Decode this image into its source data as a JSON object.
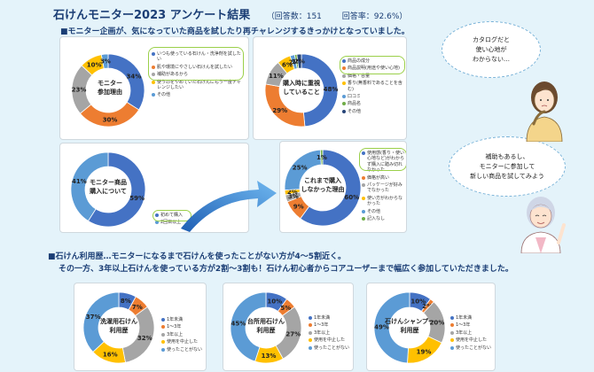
{
  "header": {
    "title": "石けんモニター2023 アンケート結果",
    "responses": "（回答数：151",
    "response_rate": "回答率：92.6%）"
  },
  "section1": "■モニター企画が、気になっていた商品を試したり再チャレンジするきっかけとなっていました。",
  "section2": {
    "line1": "■石けん利用歴…モニターになるまで石けんを使ったことがない方が4～5割近く。",
    "line2": "その一方、3年以上石けんを使っている方が2割～3割も！石けん初心者からコアユーザーまで幅広く参加していただきました。"
  },
  "bubble_top": {
    "line1": "カタログだと",
    "line2": "使い心地が",
    "line3": "わからない…"
  },
  "bubble_bottom": {
    "line1": "補助もあるし、",
    "line2": "モニターに参加して",
    "line3": "新しい商品を試してみよう"
  },
  "colors": {
    "blue": "#4472c4",
    "orange": "#ed7d31",
    "gray": "#a5a5a5",
    "yellow": "#ffc000",
    "lightblue": "#5b9bd5",
    "green": "#70ad47",
    "highlight": "#9bd04a",
    "title": "#1b3e75"
  },
  "chart_data": [
    {
      "type": "pie",
      "title": "モニター参加理由",
      "labels": {
        "slice0": "34%",
        "slice1": "30%",
        "slice2": "23%",
        "slice3": "10%",
        "slice4": "3%"
      },
      "values": [
        34,
        30,
        23,
        10,
        3
      ],
      "legend": [
        "いつも使っている石けん・洗浄剤を試したい",
        "肌や環境にやさしい石けんを試したい",
        "補助があるから",
        "使うのをやめていた石けんにもう一度チャレンジしたい",
        "その他"
      ]
    },
    {
      "type": "pie",
      "title": "購入時に重視していること",
      "labels": {
        "slice0": "48%",
        "slice1": "29%",
        "slice2": "11%",
        "slice3": "6%",
        "slice4": "2%",
        "slice5": "1%",
        "slice6": "2%"
      },
      "values": [
        48,
        29,
        11,
        6,
        2,
        1,
        2
      ],
      "legend": [
        "商品の成分",
        "商品説明(用途や使い心地)",
        "価格・容量",
        "香り(無香料であることを含む)",
        "口コミ",
        "商品名",
        "その他"
      ]
    },
    {
      "type": "pie",
      "title": "モニター商品購入について",
      "labels": {
        "slice0": "59%",
        "slice1": "41%"
      },
      "values": [
        59,
        41
      ],
      "legend": [
        "初めて購入",
        "2回目以上"
      ]
    },
    {
      "type": "pie",
      "title": "これまで購入しなかった理由",
      "labels": {
        "slice0": "60%",
        "slice1": "9%",
        "slice2": "3%",
        "slice3": "2%",
        "slice4": "25%",
        "slice5": "1%"
      },
      "values": [
        60,
        9,
        3,
        2,
        25,
        1
      ],
      "legend": [
        "使用感(香り・使い心地など)がわからず購入に踏み切れなかった",
        "価格が高い",
        "パッケージが好みでなかった",
        "使い方がわからなかった",
        "その他",
        "記入なし"
      ]
    },
    {
      "type": "pie",
      "title": "洗濯用石けん利用歴",
      "labels": {
        "slice0": "8%",
        "slice1": "7%",
        "slice2": "32%",
        "slice3": "16%",
        "slice4": "37%"
      },
      "values": [
        8,
        7,
        32,
        16,
        37
      ],
      "legend": [
        "1年未満",
        "1～3年",
        "3年以上",
        "使用を中止した",
        "使ったことがない"
      ]
    },
    {
      "type": "pie",
      "title": "台所用石けん利用歴",
      "labels": {
        "slice0": "10%",
        "slice1": "5%",
        "slice2": "27%",
        "slice3": "13%",
        "slice4": "45%"
      },
      "values": [
        10,
        5,
        27,
        13,
        45
      ],
      "legend": [
        "1年未満",
        "1～3年",
        "3年以上",
        "使用を中止した",
        "使ったことがない"
      ]
    },
    {
      "type": "pie",
      "title": "石けんシャンプー利用歴",
      "labels": {
        "slice0": "10%",
        "slice1": "2%",
        "slice2": "20%",
        "slice3": "19%",
        "slice4": "49%"
      },
      "values": [
        10,
        2,
        20,
        19,
        49
      ],
      "legend": [
        "1年未満",
        "1～3年",
        "3年以上",
        "使用を中止した",
        "使ったことがない"
      ]
    }
  ]
}
